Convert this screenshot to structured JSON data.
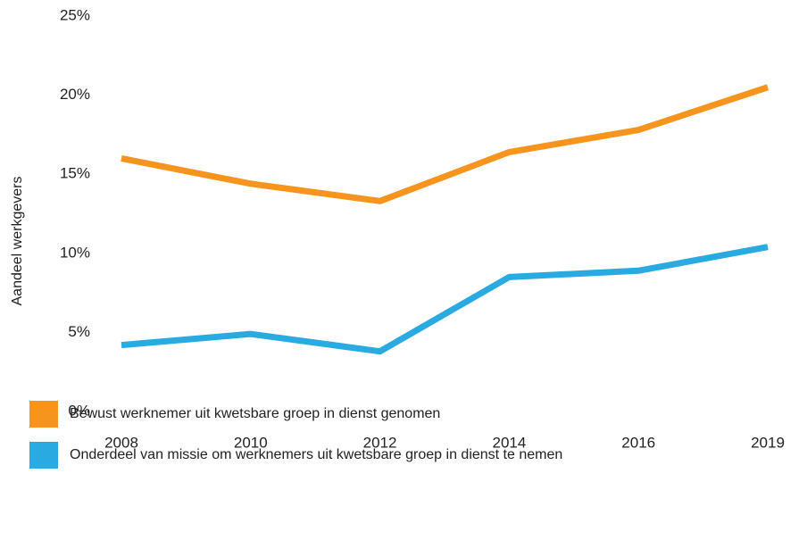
{
  "chart_data": {
    "type": "line",
    "ylabel": "Aandeel werkgevers",
    "categories": [
      "2008",
      "2010",
      "2012",
      "2014",
      "2016",
      "2019"
    ],
    "series": [
      {
        "name": "Bewust werknemer uit kwetsbare groep in dienst genomen",
        "color": "#f7941d",
        "values": [
          16.0,
          14.4,
          13.3,
          16.4,
          17.8,
          20.5
        ]
      },
      {
        "name": "Onderdeel van missie om werknemers uit kwetsbare groep in dienst te nemen",
        "color": "#29aae1",
        "values": [
          4.2,
          4.9,
          3.8,
          8.5,
          8.9,
          10.4
        ]
      }
    ],
    "ylim": [
      0,
      25
    ],
    "yticks": [
      {
        "value": 0,
        "label": "0%"
      },
      {
        "value": 5,
        "label": "5%"
      },
      {
        "value": 10,
        "label": "10%"
      },
      {
        "value": 15,
        "label": "15%"
      },
      {
        "value": 20,
        "label": "20%"
      },
      {
        "value": 25,
        "label": "25%"
      }
    ],
    "grid": false,
    "legend": "bottom"
  }
}
